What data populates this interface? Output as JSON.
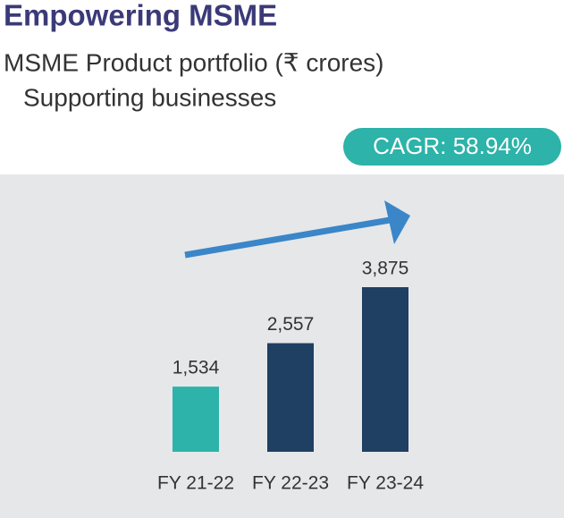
{
  "chart_data": {
    "type": "bar",
    "title": "Empowering MSME",
    "subtitle": [
      "MSME Product portfolio (₹ crores)",
      "Supporting businesses"
    ],
    "annotation": "CAGR: 58.94%",
    "categories": [
      "FY 21-22",
      "FY 22-23",
      "FY 23-24"
    ],
    "values": [
      1534,
      2557,
      3875
    ],
    "value_labels": [
      "1,534",
      "2,557",
      "3,875"
    ],
    "colors": [
      "#2db3a9",
      "#1f3f63",
      "#1f3f63"
    ]
  }
}
